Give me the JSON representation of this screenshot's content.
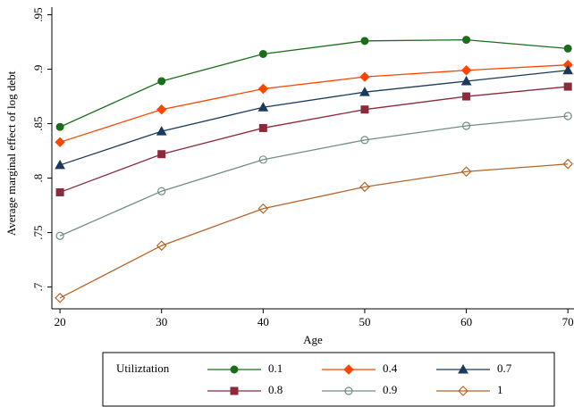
{
  "chart_data": {
    "type": "line",
    "x_label": "Age",
    "y_label": "Average marginal effect of log debt",
    "legend_title": "Utiliztation",
    "x": [
      20,
      30,
      40,
      50,
      60,
      70
    ],
    "series": [
      {
        "name": "0.1",
        "color": "#1a6e1a",
        "marker": "circle",
        "values": [
          0.847,
          0.889,
          0.914,
          0.926,
          0.927,
          0.919
        ]
      },
      {
        "name": "0.4",
        "color": "#ff4500",
        "marker": "diamond",
        "values": [
          0.833,
          0.863,
          0.882,
          0.893,
          0.899,
          0.904
        ]
      },
      {
        "name": "0.7",
        "color": "#1a3a5c",
        "marker": "triangle",
        "values": [
          0.812,
          0.843,
          0.865,
          0.879,
          0.889,
          0.899
        ]
      },
      {
        "name": "0.8",
        "color": "#8b2a3a",
        "marker": "square",
        "values": [
          0.787,
          0.822,
          0.846,
          0.863,
          0.875,
          0.884
        ]
      },
      {
        "name": "0.9",
        "color": "#6f8f7f",
        "marker": "circle-open",
        "values": [
          0.747,
          0.788,
          0.817,
          0.835,
          0.848,
          0.857
        ]
      },
      {
        "name": "1",
        "color": "#b5652a",
        "marker": "diamond-open",
        "values": [
          0.69,
          0.738,
          0.772,
          0.792,
          0.806,
          0.813
        ]
      }
    ],
    "xlim": [
      19.2,
      70.6
    ],
    "xticks": [
      20,
      30,
      40,
      50,
      60,
      70
    ],
    "ylim": [
      0.68,
      0.957
    ],
    "yticks": [
      {
        "value": 0.7,
        "label": ".7"
      },
      {
        "value": 0.75,
        "label": ".75"
      },
      {
        "value": 0.8,
        "label": ".8"
      },
      {
        "value": 0.85,
        "label": ".85"
      },
      {
        "value": 0.9,
        "label": ".9"
      },
      {
        "value": 0.95,
        "label": ".95"
      }
    ]
  }
}
